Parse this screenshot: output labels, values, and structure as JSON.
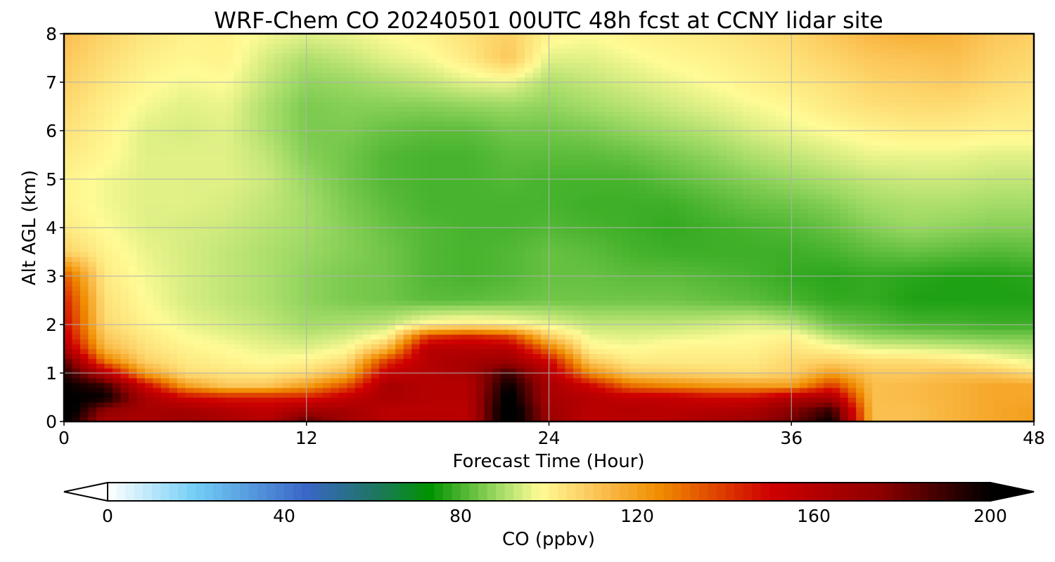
{
  "chart_data": {
    "type": "heatmap",
    "title": "WRF-Chem CO  20240501 00UTC 48h fcst at CCNY lidar site",
    "xlabel": "Forecast Time (Hour)",
    "ylabel": "Alt AGL (km)",
    "xlim": [
      0,
      48
    ],
    "ylim": [
      0,
      8
    ],
    "xticks": [
      "0",
      "12",
      "24",
      "36",
      "48"
    ],
    "yticks": [
      "0",
      "1",
      "2",
      "3",
      "4",
      "5",
      "6",
      "7",
      "8"
    ],
    "grid": true,
    "colorbar": {
      "label": "CO  (ppbv)",
      "range": [
        0,
        200
      ],
      "ticks": [
        "0",
        "40",
        "80",
        "120",
        "160",
        "200"
      ],
      "extend": "both",
      "orientation": "horizontal",
      "stops": [
        {
          "v": 0,
          "c": "#ffffff"
        },
        {
          "v": 20,
          "c": "#72cdf5"
        },
        {
          "v": 45,
          "c": "#3a66c6"
        },
        {
          "v": 60,
          "c": "#1f7566"
        },
        {
          "v": 73,
          "c": "#009300"
        },
        {
          "v": 88,
          "c": "#9ad862"
        },
        {
          "v": 98,
          "c": "#fffb96"
        },
        {
          "v": 110,
          "c": "#fcc75a"
        },
        {
          "v": 125,
          "c": "#f08c00"
        },
        {
          "v": 150,
          "c": "#cf0000"
        },
        {
          "v": 175,
          "c": "#8d0000"
        },
        {
          "v": 200,
          "c": "#000000"
        }
      ]
    },
    "x": [
      0,
      2,
      4,
      6,
      8,
      10,
      12,
      14,
      16,
      18,
      20,
      22,
      24,
      26,
      28,
      30,
      32,
      34,
      36,
      38,
      40,
      42,
      44,
      46,
      48
    ],
    "y": [
      0,
      0.25,
      0.5,
      0.75,
      1.0,
      1.25,
      1.5,
      1.75,
      2.0,
      2.5,
      3.0,
      3.5,
      4.0,
      4.5,
      5.0,
      5.5,
      6.0,
      6.5,
      7.0,
      7.5,
      8.0
    ],
    "values": [
      [
        205,
        165,
        165,
        170,
        165,
        160,
        185,
        168,
        158,
        160,
        158,
        210,
        170,
        158,
        158,
        160,
        165,
        170,
        180,
        200,
        112,
        112,
        115,
        118,
        120
      ],
      [
        210,
        175,
        165,
        165,
        160,
        155,
        165,
        165,
        158,
        158,
        158,
        210,
        168,
        158,
        160,
        158,
        160,
        162,
        175,
        190,
        112,
        112,
        115,
        118,
        120
      ],
      [
        200,
        200,
        165,
        150,
        145,
        145,
        145,
        155,
        165,
        160,
        160,
        205,
        165,
        160,
        155,
        155,
        150,
        150,
        160,
        165,
        112,
        113,
        115,
        118,
        118
      ],
      [
        200,
        190,
        150,
        120,
        110,
        110,
        120,
        135,
        165,
        160,
        160,
        200,
        165,
        150,
        130,
        125,
        122,
        120,
        120,
        140,
        112,
        113,
        115,
        118,
        118
      ],
      [
        195,
        160,
        120,
        105,
        103,
        102,
        105,
        115,
        155,
        160,
        165,
        190,
        160,
        125,
        110,
        108,
        106,
        105,
        108,
        120,
        110,
        110,
        112,
        110,
        105
      ],
      [
        185,
        130,
        108,
        102,
        100,
        98,
        100,
        105,
        140,
        160,
        165,
        170,
        150,
        110,
        102,
        102,
        102,
        102,
        106,
        108,
        105,
        105,
        103,
        100,
        96
      ],
      [
        165,
        115,
        104,
        100,
        98,
        96,
        95,
        98,
        115,
        160,
        160,
        160,
        130,
        100,
        98,
        100,
        100,
        100,
        103,
        100,
        96,
        95,
        94,
        92,
        90
      ],
      [
        155,
        110,
        102,
        98,
        96,
        94,
        92,
        94,
        100,
        140,
        145,
        140,
        110,
        96,
        95,
        96,
        97,
        98,
        100,
        92,
        88,
        87,
        86,
        85,
        85
      ],
      [
        150,
        106,
        100,
        96,
        94,
        92,
        89,
        90,
        92,
        100,
        102,
        100,
        96,
        92,
        92,
        92,
        93,
        95,
        92,
        84,
        82,
        80,
        80,
        79,
        79
      ],
      [
        145,
        104,
        98,
        94,
        92,
        90,
        87,
        85,
        84,
        82,
        82,
        83,
        84,
        84,
        84,
        84,
        83,
        82,
        80,
        78,
        78,
        76,
        76,
        76,
        76
      ],
      [
        135,
        102,
        97,
        94,
        92,
        90,
        87,
        85,
        84,
        81,
        80,
        81,
        83,
        83,
        82,
        82,
        81,
        80,
        78,
        77,
        78,
        77,
        76,
        76,
        77
      ],
      [
        108,
        100,
        96,
        94,
        92,
        90,
        88,
        86,
        84,
        81,
        80,
        81,
        83,
        82,
        80,
        79,
        79,
        79,
        79,
        80,
        82,
        83,
        82,
        81,
        82
      ],
      [
        102,
        98,
        95,
        94,
        93,
        91,
        89,
        86,
        83,
        81,
        80,
        80,
        81,
        80,
        79,
        78,
        79,
        80,
        81,
        83,
        86,
        88,
        87,
        86,
        86
      ],
      [
        100,
        97,
        95,
        95,
        94,
        92,
        89,
        85,
        82,
        80,
        80,
        80,
        80,
        79,
        79,
        79,
        81,
        83,
        84,
        86,
        89,
        90,
        90,
        89,
        89
      ],
      [
        100,
        97,
        95,
        95,
        95,
        93,
        88,
        84,
        81,
        80,
        80,
        81,
        80,
        80,
        80,
        82,
        84,
        86,
        88,
        90,
        92,
        93,
        93,
        92,
        92
      ],
      [
        102,
        99,
        95,
        95,
        95,
        92,
        86,
        84,
        81,
        80,
        80,
        82,
        82,
        82,
        83,
        85,
        87,
        90,
        92,
        94,
        96,
        96,
        96,
        95,
        95
      ],
      [
        104,
        100,
        95,
        94,
        95,
        90,
        85,
        85,
        83,
        82,
        82,
        84,
        84,
        85,
        87,
        89,
        91,
        94,
        96,
        98,
        100,
        101,
        101,
        100,
        100
      ],
      [
        106,
        101,
        97,
        95,
        96,
        90,
        85,
        86,
        86,
        86,
        87,
        88,
        87,
        89,
        91,
        93,
        95,
        97,
        99,
        102,
        104,
        105,
        105,
        103,
        102
      ],
      [
        108,
        103,
        99,
        97,
        98,
        92,
        87,
        88,
        90,
        92,
        95,
        96,
        90,
        92,
        94,
        96,
        98,
        100,
        102,
        104,
        107,
        108,
        109,
        106,
        104
      ],
      [
        110,
        105,
        101,
        99,
        100,
        94,
        90,
        92,
        95,
        97,
        102,
        110,
        95,
        95,
        97,
        99,
        100,
        102,
        104,
        107,
        110,
        111,
        112,
        108,
        106
      ],
      [
        112,
        107,
        103,
        100,
        100,
        97,
        95,
        96,
        98,
        100,
        104,
        108,
        100,
        98,
        100,
        101,
        102,
        104,
        106,
        110,
        114,
        116,
        115,
        110,
        108
      ]
    ]
  }
}
